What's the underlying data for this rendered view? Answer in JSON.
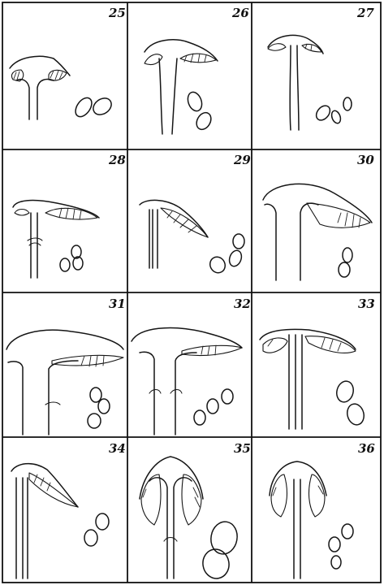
{
  "plate": {
    "panels": [
      {
        "number": "25",
        "gill_profile": "small-broad"
      },
      {
        "number": "26",
        "gill_profile": "short-rounded"
      },
      {
        "number": "27",
        "gill_profile": "tiny-rounded"
      },
      {
        "number": "28",
        "gill_profile": "narrow-tapering"
      },
      {
        "number": "29",
        "gill_profile": "narrow-descending"
      },
      {
        "number": "30",
        "gill_profile": "broad-ascending"
      },
      {
        "number": "31",
        "gill_profile": "very-broad-thin"
      },
      {
        "number": "32",
        "gill_profile": "broad-thin"
      },
      {
        "number": "33",
        "gill_profile": "deep-ventricose"
      },
      {
        "number": "34",
        "gill_profile": "descending-tapering"
      },
      {
        "number": "35",
        "gill_profile": "deep-bell"
      },
      {
        "number": "36",
        "gill_profile": "deep-bell-small"
      }
    ]
  }
}
